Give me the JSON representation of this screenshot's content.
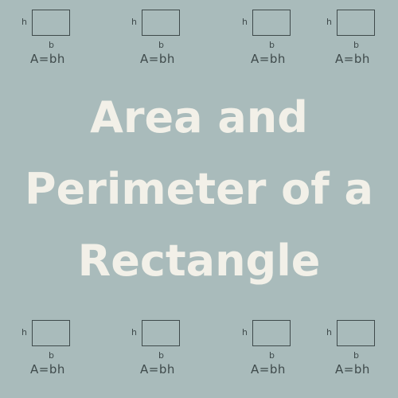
{
  "diagram": {
    "height_label": "h",
    "base_label": "b",
    "formula": "A=bh"
  },
  "title": {
    "line1": "Area and",
    "line2": "Perimeter of a",
    "line3": "Rectangle"
  },
  "colors": {
    "background": "#a9bbbb",
    "title_text": "#f2f0e8",
    "diagram_ink": "#3f4a4b"
  }
}
